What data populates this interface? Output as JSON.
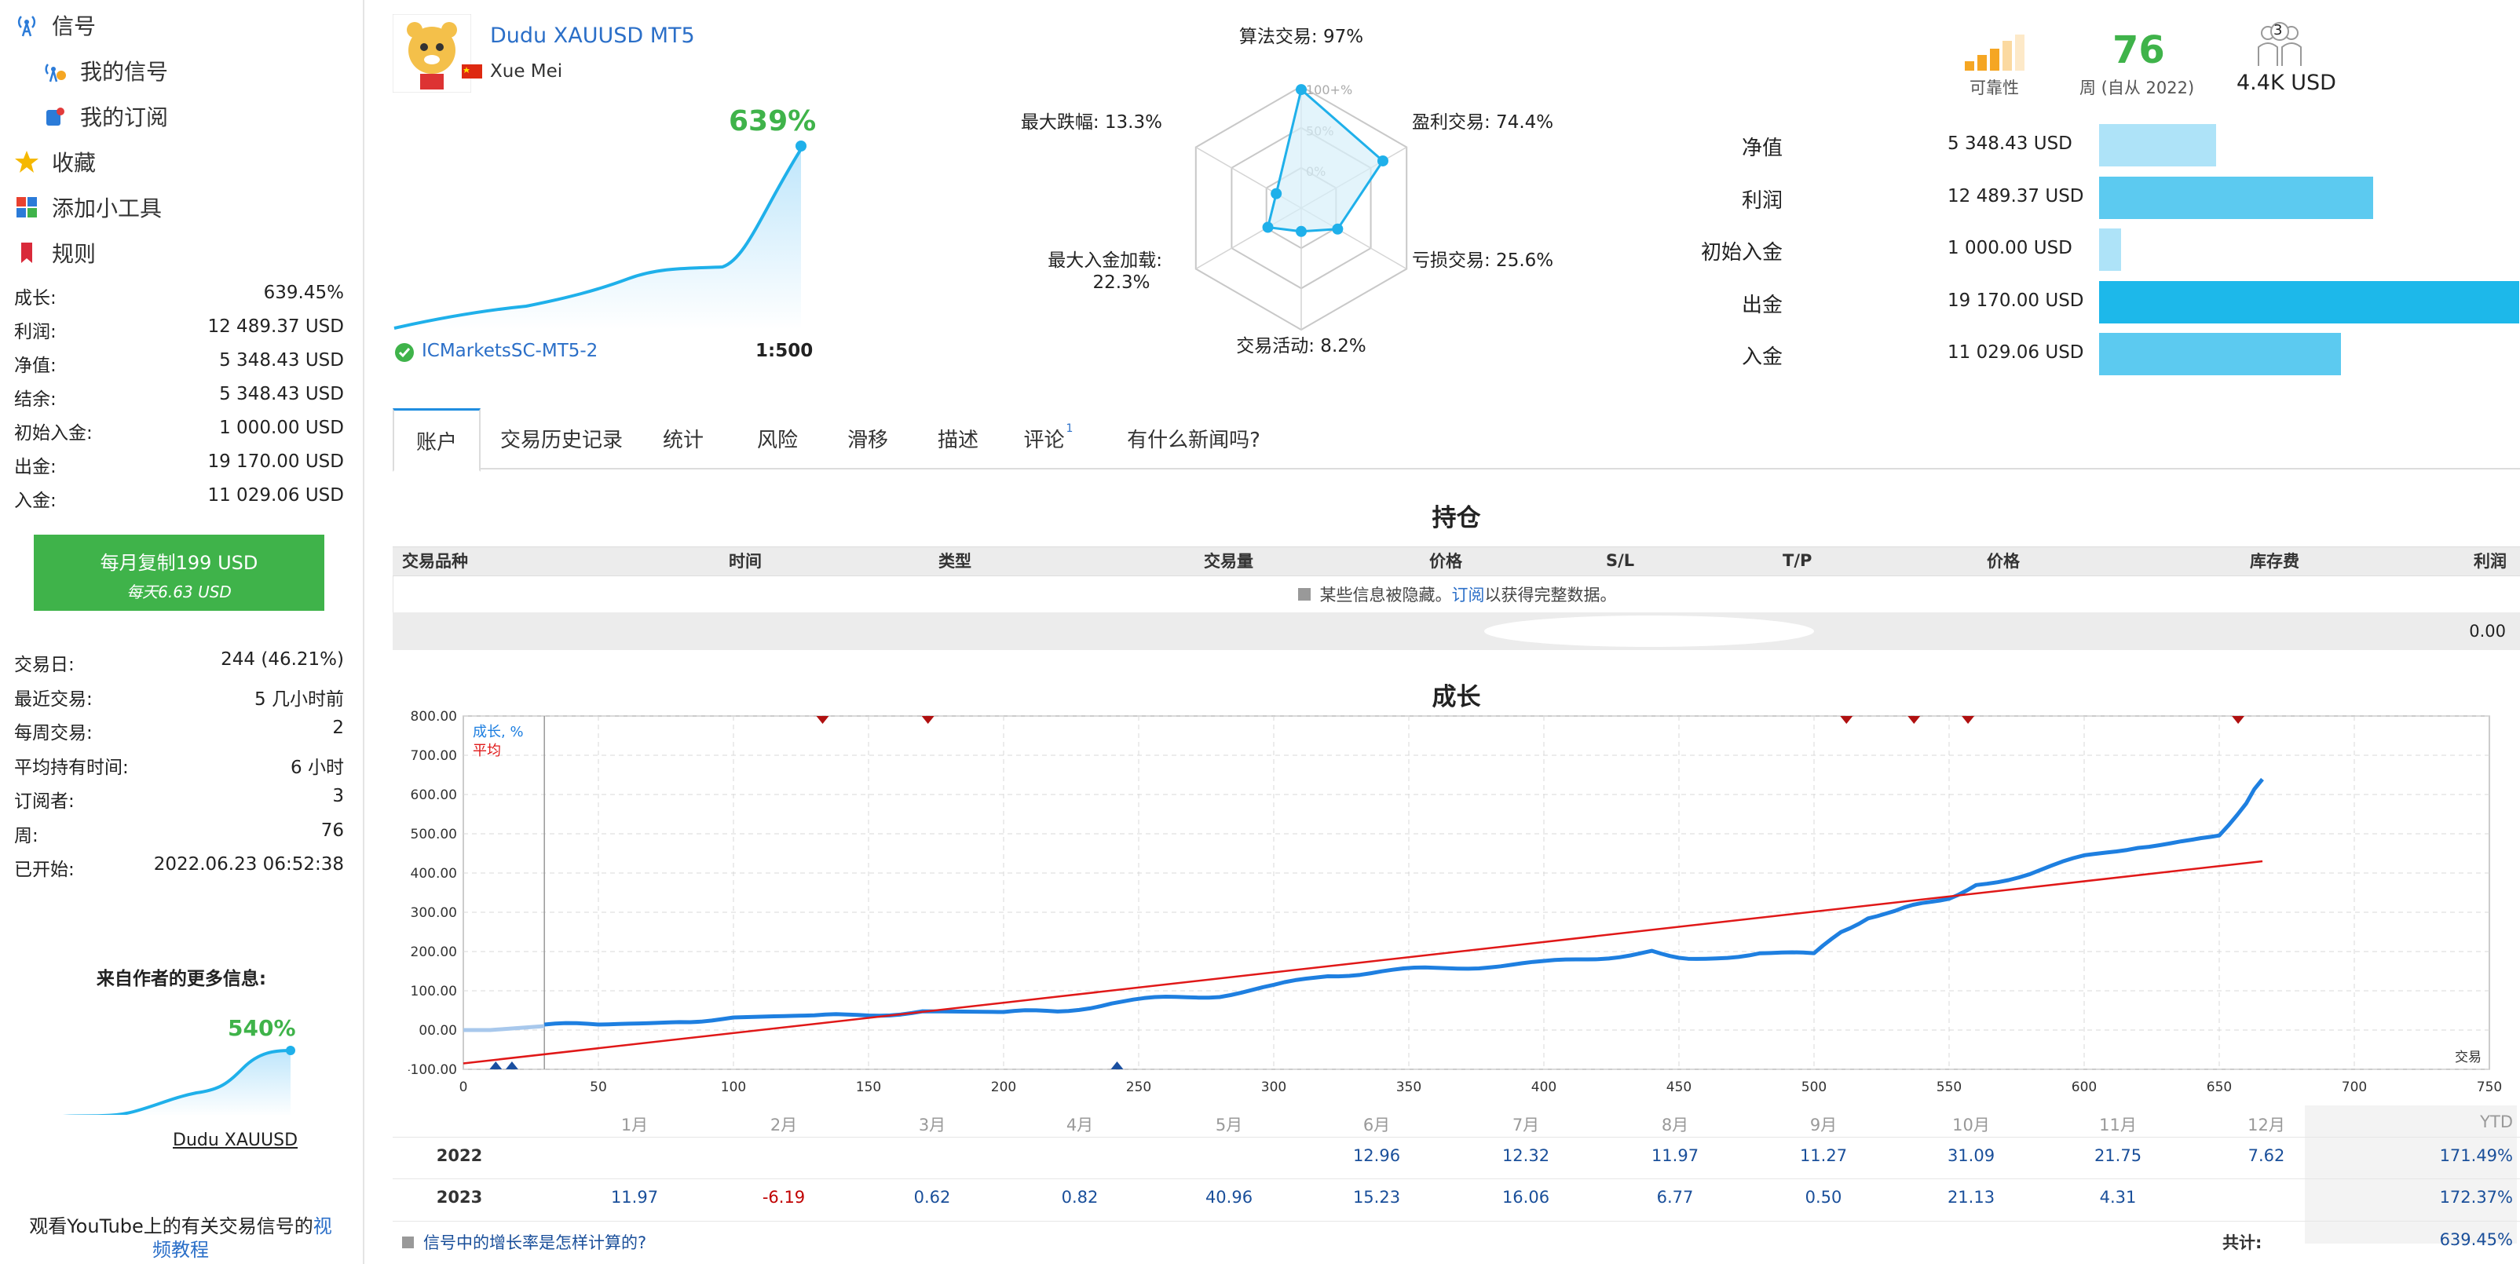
{
  "sidebar": {
    "nav": [
      {
        "label": "信号",
        "icon": "antenna-icon"
      },
      {
        "label": "我的信号",
        "icon": "broadcast-icon"
      },
      {
        "label": "我的订阅",
        "icon": "subscription-icon"
      },
      {
        "label": "收藏",
        "icon": "star-icon"
      },
      {
        "label": "添加小工具",
        "icon": "widget-icon"
      },
      {
        "label": "规则",
        "icon": "bookmark-icon"
      }
    ],
    "stats": [
      {
        "label": "成长:",
        "value": "639.45%"
      },
      {
        "label": "利润:",
        "value": "12 489.37 USD"
      },
      {
        "label": "净值:",
        "value": "5 348.43 USD"
      },
      {
        "label": "结余:",
        "value": "5 348.43 USD"
      },
      {
        "label": "初始入金:",
        "value": "1 000.00 USD"
      },
      {
        "label": "出金:",
        "value": "19 170.00 USD"
      },
      {
        "label": "入金:",
        "value": "11 029.06 USD"
      }
    ],
    "copy_button": {
      "line1": "每月复制199 USD",
      "line2": "每天6.63 USD"
    },
    "stats2": [
      {
        "label": "交易日:",
        "value": "244 (46.21%)"
      },
      {
        "label": "最近交易:",
        "value": "5 几小时前"
      },
      {
        "label": "每周交易:",
        "value": "2"
      },
      {
        "label": "平均持有时间:",
        "value": "6 小时"
      },
      {
        "label": "订阅者:",
        "value": "3"
      },
      {
        "label": "周:",
        "value": "76"
      },
      {
        "label": "已开始:",
        "value": "2022.06.23 06:52:38"
      }
    ],
    "more_info_title": "来自作者的更多信息:",
    "mini_signal": {
      "growth": "540%",
      "name": "Dudu XAUUSD"
    },
    "youtube_text": "观看YouTube上的有关交易信号的",
    "youtube_link_1": "视",
    "youtube_link_2": "频教程"
  },
  "header": {
    "signal_name": "Dudu XAUUSD MT5",
    "author": "Xue Mei",
    "growth": "639%",
    "broker": "ICMarketsSC-MT5-2",
    "leverage": "1:500"
  },
  "radar": {
    "axes": [
      {
        "label": "算法交易: 97%",
        "value": 97
      },
      {
        "label": "盈利交易: 74.4%",
        "value": 74.4
      },
      {
        "label": "亏损交易: 25.6%",
        "value": 25.6
      },
      {
        "label": "交易活动: 8.2%",
        "value": 8.2
      },
      {
        "label_line1": "最大入金加载:",
        "label_line2": "22.3%",
        "value": 22.3
      },
      {
        "label": "最大跌幅: 13.3%",
        "value": 13.3
      }
    ],
    "scale": [
      "100+%",
      "50%",
      "0%"
    ]
  },
  "summary": {
    "reliability_label": "可靠性",
    "weeks_value": "76",
    "weeks_label": "周 (自从 2022)",
    "subscribers_count": "3",
    "subscribers_value": "4.4K USD"
  },
  "metrics": [
    {
      "label": "净值",
      "value": "5 348.43 USD",
      "amount": 5348.43,
      "color": "#aee3f8"
    },
    {
      "label": "利润",
      "value": "12 489.37 USD",
      "amount": 12489.37,
      "color": "#5ccaf0"
    },
    {
      "label": "初始入金",
      "value": "1 000.00 USD",
      "amount": 1000.0,
      "color": "#aee3f8"
    },
    {
      "label": "出金",
      "value": "19 170.00 USD",
      "amount": 19170.0,
      "color": "#1db8ea"
    },
    {
      "label": "入金",
      "value": "11 029.06 USD",
      "amount": 11029.06,
      "color": "#5ccaf0"
    }
  ],
  "tabs": [
    {
      "label": "账户",
      "active": true
    },
    {
      "label": "交易历史记录"
    },
    {
      "label": "统计"
    },
    {
      "label": "风险"
    },
    {
      "label": "滑移"
    },
    {
      "label": "描述"
    },
    {
      "label": "评论",
      "badge": "1"
    },
    {
      "label": "有什么新闻吗?"
    }
  ],
  "positions": {
    "title": "持仓",
    "columns": [
      "交易品种",
      "时间",
      "类型",
      "交易量",
      "价格",
      "S/L",
      "T/P",
      "价格",
      "库存费",
      "利润"
    ],
    "hidden_notice_prefix": "某些信息被隐藏。",
    "hidden_notice_link": "订阅",
    "hidden_notice_suffix": "以获得完整数据。",
    "total": "0.00"
  },
  "chart_data": {
    "type": "line",
    "title": "成长",
    "legend": [
      "成长, %",
      "平均"
    ],
    "xlabel": "交易",
    "xlim": [
      0,
      750
    ],
    "ylim": [
      -100,
      800
    ],
    "xticks": [
      0,
      50,
      100,
      150,
      200,
      250,
      300,
      350,
      400,
      450,
      500,
      550,
      600,
      650,
      700,
      750
    ],
    "yticks": [
      "800.00",
      "700.00",
      "600.00",
      "500.00",
      "400.00",
      "300.00",
      "200.00",
      "100.00",
      "00.00",
      "-100.00"
    ],
    "series": [
      {
        "name": "成长, %",
        "color": "#1e7fe0",
        "x": [
          0,
          10,
          20,
          30,
          50,
          80,
          100,
          130,
          150,
          170,
          200,
          220,
          240,
          260,
          280,
          300,
          320,
          340,
          360,
          380,
          400,
          420,
          440,
          450,
          460,
          480,
          500,
          510,
          520,
          530,
          540,
          550,
          560,
          580,
          600,
          620,
          640,
          650,
          660,
          666
        ],
        "y": [
          0,
          0,
          5,
          10,
          15,
          25,
          30,
          32,
          40,
          48,
          42,
          48,
          70,
          80,
          90,
          110,
          140,
          150,
          155,
          165,
          170,
          185,
          200,
          190,
          180,
          200,
          190,
          250,
          290,
          300,
          320,
          340,
          370,
          400,
          440,
          470,
          480,
          500,
          580,
          639
        ]
      },
      {
        "name": "平均",
        "color": "#e01818",
        "x": [
          0,
          666
        ],
        "y": [
          -85,
          430
        ]
      }
    ],
    "markers_top_x": [
      133,
      172,
      512,
      537,
      557,
      657
    ],
    "markers_bottom_x": [
      12,
      18,
      242
    ]
  },
  "monthly": {
    "months": [
      "1月",
      "2月",
      "3月",
      "4月",
      "5月",
      "6月",
      "7月",
      "8月",
      "9月",
      "10月",
      "11月",
      "12月"
    ],
    "ytd_label": "YTD",
    "rows": [
      {
        "year": "2022",
        "values": [
          "",
          "",
          "",
          "",
          "",
          "12.96",
          "12.32",
          "11.97",
          "11.27",
          "31.09",
          "21.75",
          "7.62"
        ],
        "ytd": "171.49%"
      },
      {
        "year": "2023",
        "values": [
          "11.97",
          "-6.19",
          "0.62",
          "0.82",
          "40.96",
          "15.23",
          "16.06",
          "6.77",
          "0.50",
          "21.13",
          "4.31",
          ""
        ],
        "ytd": "172.37%"
      }
    ],
    "faq_link": "信号中的增长率是怎样计算的?",
    "total_label": "共计:",
    "total_value": "639.45%"
  }
}
